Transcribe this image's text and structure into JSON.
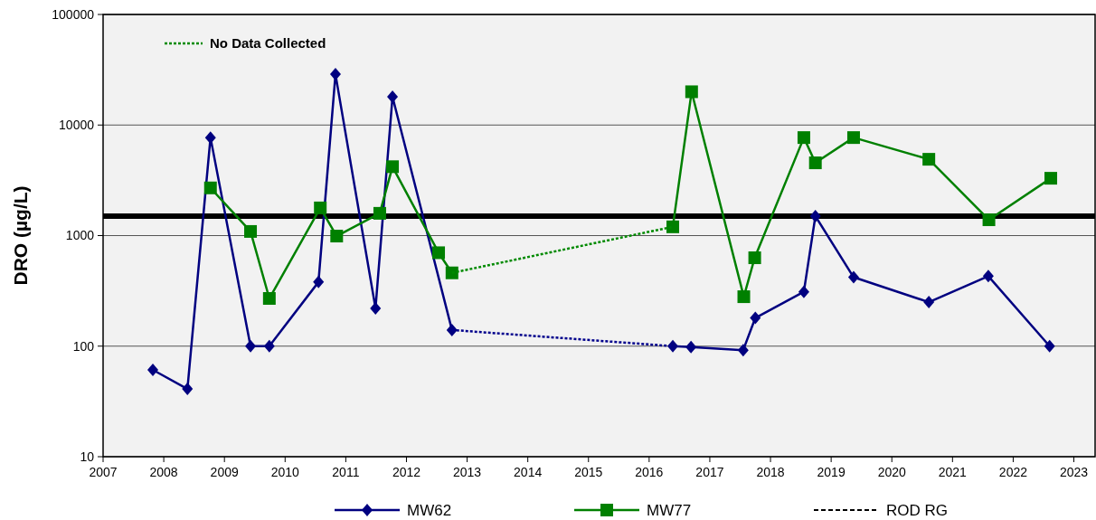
{
  "chart_data": {
    "type": "line",
    "ylabel": "DRO (µg/L)",
    "log": "y",
    "grid": "y",
    "legend": "bottom",
    "xlim": [
      2007,
      2023.35
    ],
    "xticks": [
      2007,
      2008,
      2009,
      2010,
      2011,
      2012,
      2013,
      2014,
      2015,
      2016,
      2017,
      2018,
      2019,
      2020,
      2021,
      2022,
      2023
    ],
    "ylim": [
      10,
      100000
    ],
    "yticks": [
      10,
      100,
      1000,
      10000,
      100000
    ],
    "series": [
      {
        "name": "MW62",
        "color": "#000080",
        "marker": "diamond",
        "line_style": "solid",
        "x": [
          2007.82,
          2008.39,
          2008.77,
          2009.43,
          2009.74,
          2010.55,
          2010.83,
          2011.49,
          2011.77,
          2012.75,
          null,
          2016.39,
          2016.69,
          2017.55,
          2017.75,
          2018.55,
          2018.74,
          2019.37,
          2020.61,
          2021.59,
          2022.6
        ],
        "values": [
          61,
          41,
          7700,
          100,
          100,
          380,
          28800,
          220,
          18000,
          140,
          null,
          100,
          98,
          92,
          180,
          310,
          1500,
          420,
          250,
          430,
          100
        ]
      },
      {
        "name": "MW77",
        "color": "#008000",
        "marker": "square",
        "line_style": "solid",
        "x": [
          2008.77,
          2009.43,
          2009.74,
          2010.58,
          2010.85,
          2011.56,
          2011.77,
          2012.53,
          2012.75,
          null,
          2016.39,
          2016.7,
          2017.56,
          2017.74,
          2018.55,
          2018.74,
          2019.37,
          2020.61,
          2021.6,
          2022.62
        ],
        "values": [
          2700,
          1090,
          270,
          1780,
          990,
          1590,
          4200,
          700,
          460,
          null,
          1200,
          20000,
          280,
          630,
          7700,
          4550,
          7700,
          4900,
          1390,
          3300
        ]
      },
      {
        "name": "No Data Collected",
        "color": "#008a00",
        "marker": "none",
        "line_style": "dotted",
        "x": [
          2012.75,
          2016.39
        ],
        "values": [
          460,
          1200
        ]
      },
      {
        "color": "#00008c",
        "marker": "none",
        "line_style": "dotted",
        "x": [
          2012.75,
          2016.39
        ],
        "values": [
          140,
          100
        ]
      }
    ],
    "ref_lines": [
      {
        "axis": "y",
        "value": 1500,
        "label": "ROD RG",
        "color": "#000000"
      }
    ]
  }
}
